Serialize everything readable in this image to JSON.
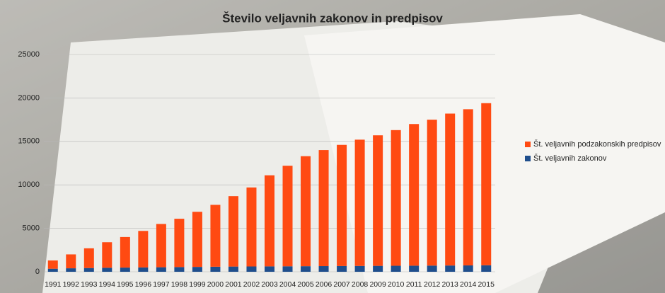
{
  "chart_data": {
    "type": "stacked_bar",
    "title": "Število veljavnih zakonov in predpisov",
    "categories": [
      "1991",
      "1992",
      "1993",
      "1994",
      "1995",
      "1996",
      "1997",
      "1998",
      "1999",
      "2000",
      "2001",
      "2002",
      "2003",
      "2004",
      "2005",
      "2006",
      "2007",
      "2008",
      "2009",
      "2010",
      "2011",
      "2012",
      "2013",
      "2014",
      "2015"
    ],
    "series": [
      {
        "name": "Št. veljavnih zakonov",
        "color": "#1f4e8c",
        "values": [
          350,
          400,
          430,
          460,
          480,
          500,
          520,
          540,
          560,
          580,
          600,
          610,
          620,
          630,
          640,
          650,
          660,
          670,
          680,
          690,
          700,
          710,
          720,
          730,
          750
        ]
      },
      {
        "name": "Št. veljavnih podzakonskih predpisov",
        "color": "#ff4a12",
        "values": [
          950,
          1600,
          2270,
          2940,
          3520,
          4200,
          4980,
          5560,
          6340,
          7120,
          8100,
          9090,
          10480,
          11570,
          12660,
          13350,
          13940,
          14530,
          15020,
          15610,
          16300,
          16790,
          17480,
          17970,
          18650
        ]
      }
    ],
    "ylim": [
      0,
      25000
    ],
    "yticks": [
      0,
      5000,
      10000,
      15000,
      20000,
      25000
    ],
    "grid": true,
    "legend": "right"
  }
}
